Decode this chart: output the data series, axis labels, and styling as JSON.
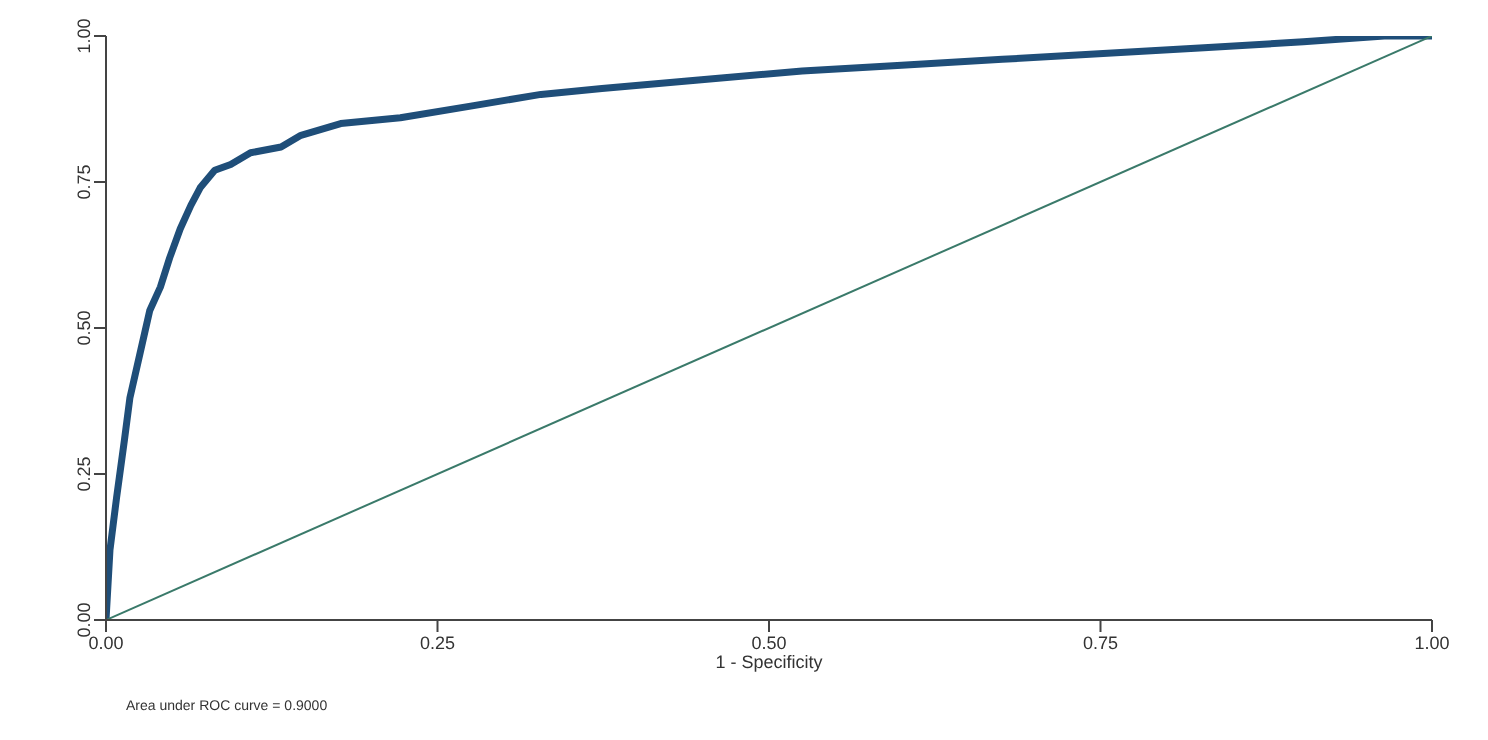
{
  "chart_data": {
    "type": "line",
    "xlabel": "1 - Specificity",
    "annotations": [
      "Area under ROC curve = 0.9000"
    ],
    "xlim": [
      0,
      1
    ],
    "ylim": [
      0,
      1
    ],
    "xticks": [
      {
        "value": 0,
        "label": "0.00"
      },
      {
        "value": 0.25,
        "label": "0.25"
      },
      {
        "value": 0.5,
        "label": "0.50"
      },
      {
        "value": 0.75,
        "label": "0.75"
      },
      {
        "value": 1,
        "label": "1.00"
      }
    ],
    "yticks": [
      {
        "value": 0,
        "label": "0.00"
      },
      {
        "value": 0.25,
        "label": "0.25"
      },
      {
        "value": 0.5,
        "label": "0.50"
      },
      {
        "value": 0.75,
        "label": "0.75"
      },
      {
        "value": 1,
        "label": "1.00"
      }
    ],
    "grid": false,
    "marker": "none",
    "series": [
      {
        "color": "#1f4e79",
        "x": [
          0,
          0.003,
          0.008,
          0.014,
          0.018,
          0.026,
          0.033,
          0.041,
          0.048,
          0.056,
          0.064,
          0.071,
          0.082,
          0.094,
          0.109,
          0.132,
          0.147,
          0.177,
          0.222,
          0.275,
          0.328,
          0.374,
          0.449,
          0.525,
          0.6,
          0.676,
          0.752,
          0.828,
          0.903,
          0.964,
          1
        ],
        "values": [
          0,
          0.12,
          0.21,
          0.31,
          0.38,
          0.46,
          0.53,
          0.57,
          0.62,
          0.67,
          0.71,
          0.74,
          0.77,
          0.78,
          0.8,
          0.81,
          0.83,
          0.85,
          0.86,
          0.88,
          0.9,
          0.91,
          0.925,
          0.94,
          0.95,
          0.96,
          0.97,
          0.98,
          0.99,
          1,
          1
        ]
      },
      {
        "color": "#3a7a6a",
        "x": [
          0,
          1
        ],
        "values": [
          0,
          1
        ]
      }
    ]
  }
}
